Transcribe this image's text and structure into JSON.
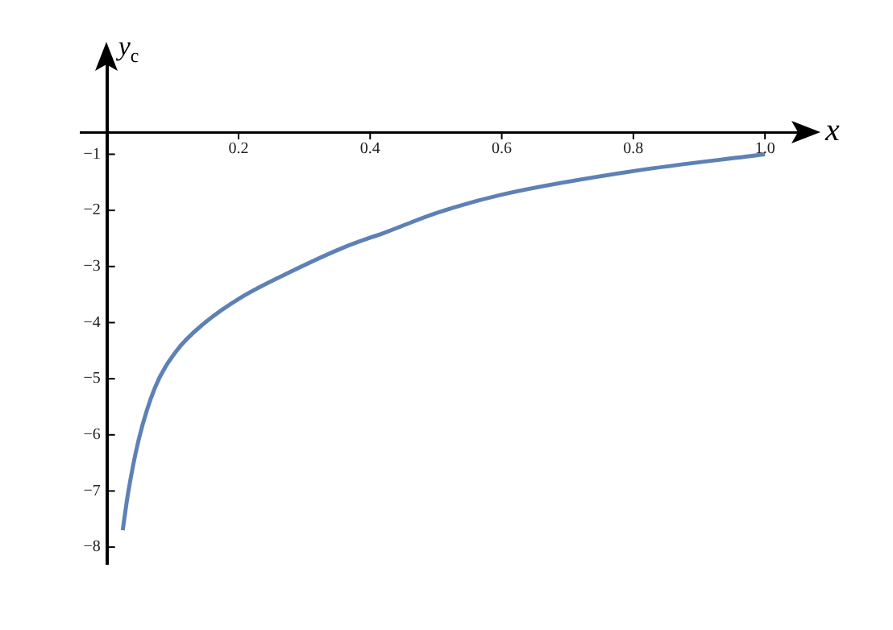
{
  "chart_data": {
    "type": "line",
    "xlabel": "x",
    "ylabel": "y$_{c}$",
    "x": [
      0.024,
      0.032,
      0.048,
      0.073,
      0.106,
      0.147,
      0.204,
      0.278,
      0.36,
      0.426,
      0.5,
      0.6,
      0.8,
      1.0
    ],
    "series": [
      {
        "color": "#5e81b5",
        "values": [
          -7.7,
          -7.05,
          -6.1,
          -5.16,
          -4.5,
          -4.02,
          -3.55,
          -3.1,
          -2.66,
          -2.38,
          -2.05,
          -1.72,
          -1.3,
          -1.0
        ]
      }
    ],
    "xlim": [
      -0.04,
      1.05
    ],
    "ylim": [
      -8.3,
      0.6
    ],
    "xticks": [
      0.2,
      0.4,
      0.6,
      0.8,
      {
        "value": 1.0,
        "label": "1.0"
      }
    ],
    "yticks": [
      -1,
      -2,
      -3,
      -4,
      -5,
      -6,
      -7,
      -8
    ],
    "grid": false,
    "legend": false,
    "marker": "none",
    "line_style": "solid"
  }
}
